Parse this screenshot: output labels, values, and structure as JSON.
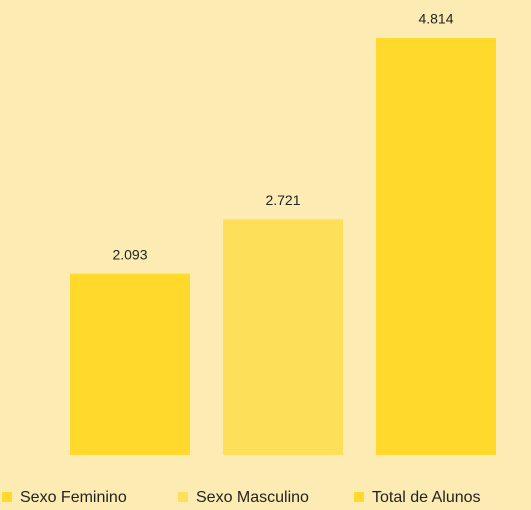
{
  "chart_data": {
    "type": "bar",
    "series": [
      {
        "name": "Sexo Feminino",
        "color": "#ffd92b",
        "values": [
          2093
        ],
        "value_labels": [
          "2.093"
        ]
      },
      {
        "name": "Sexo Masculino",
        "color": "#fedf5a",
        "values": [
          2721
        ],
        "value_labels": [
          "2.721"
        ]
      },
      {
        "name": "Total de Alunos",
        "color": "#ffd92b",
        "values": [
          4814
        ],
        "value_labels": [
          "4.814"
        ]
      }
    ],
    "legend": "bottom"
  }
}
